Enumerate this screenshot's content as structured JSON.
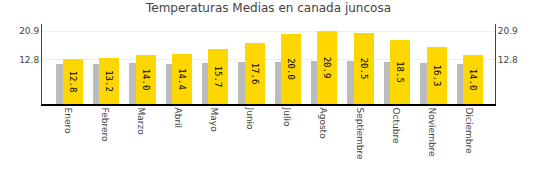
{
  "chart_data": {
    "type": "bar",
    "title": "Temperaturas Medias en canada juncosa",
    "categories": [
      "Enero",
      "Febrero",
      "Marzo",
      "Abril",
      "Mayo",
      "Junio",
      "Julio",
      "Agosto",
      "Septiembre",
      "Octubre",
      "Noviembre",
      "Diciembre"
    ],
    "series": [
      {
        "color": "#BBBBBB",
        "values": [
          11.5,
          11.6,
          11.8,
          11.6,
          11.8,
          12.0,
          12.2,
          12.5,
          12.3,
          12.0,
          11.7,
          11.6
        ]
      },
      {
        "color": "#FFD700",
        "values": [
          12.8,
          13.2,
          14.0,
          14.4,
          15.7,
          17.6,
          20.0,
          20.9,
          20.5,
          18.5,
          16.3,
          14.0
        ],
        "value_labels": [
          "12.8",
          "13.2",
          "14.0",
          "14.4",
          "15.7",
          "17.6",
          "20.0",
          "20.9",
          "20.5",
          "18.5",
          "16.3",
          "14.0"
        ],
        "data_labels": true
      }
    ],
    "ylim": [
      0,
      23.0
    ],
    "yticks": [
      12.8,
      20.9
    ],
    "y2lim": [
      0,
      23.0
    ],
    "y2ticks": [
      12.8,
      20.9
    ],
    "grid": true
  }
}
